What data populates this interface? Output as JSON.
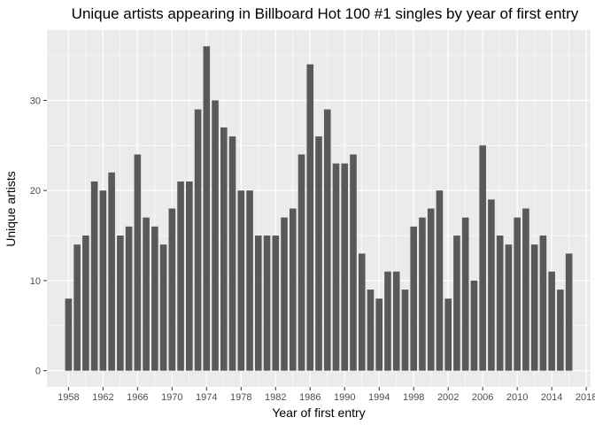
{
  "chart_data": {
    "type": "bar",
    "title": "Unique artists appearing in Billboard Hot 100 #1 singles by year of first entry",
    "xlabel": "Year of first entry",
    "ylabel": "Unique artists",
    "x": [
      1958,
      1959,
      1960,
      1961,
      1962,
      1963,
      1964,
      1965,
      1966,
      1967,
      1968,
      1969,
      1970,
      1971,
      1972,
      1973,
      1974,
      1975,
      1976,
      1977,
      1978,
      1979,
      1980,
      1981,
      1982,
      1983,
      1984,
      1985,
      1986,
      1987,
      1988,
      1989,
      1990,
      1991,
      1992,
      1993,
      1994,
      1995,
      1996,
      1997,
      1998,
      1999,
      2000,
      2001,
      2002,
      2003,
      2004,
      2005,
      2006,
      2007,
      2008,
      2009,
      2010,
      2011,
      2012,
      2013,
      2014,
      2015,
      2016
    ],
    "values": [
      8,
      14,
      15,
      21,
      20,
      22,
      15,
      16,
      24,
      17,
      16,
      14,
      18,
      21,
      21,
      29,
      36,
      30,
      27,
      26,
      20,
      20,
      15,
      15,
      15,
      17,
      18,
      24,
      34,
      26,
      29,
      23,
      23,
      24,
      13,
      9,
      8,
      11,
      11,
      9,
      16,
      17,
      18,
      20,
      8,
      15,
      17,
      10,
      25,
      19,
      15,
      14,
      17,
      18,
      14,
      15,
      11,
      9,
      13
    ],
    "x_ticks": [
      "1958",
      "1962",
      "1966",
      "1970",
      "1974",
      "1978",
      "1982",
      "1986",
      "1990",
      "1994",
      "1998",
      "2002",
      "2006",
      "2010",
      "2014",
      "2018"
    ],
    "y_ticks": [
      "0",
      "10",
      "20",
      "30"
    ],
    "xlim": [
      1955.5,
      2018.5
    ],
    "ylim": [
      -1.8,
      37.8
    ],
    "grid": true,
    "colors": {
      "bar": "#595959",
      "panel": "#ebebeb",
      "grid_major": "#ffffff"
    }
  }
}
